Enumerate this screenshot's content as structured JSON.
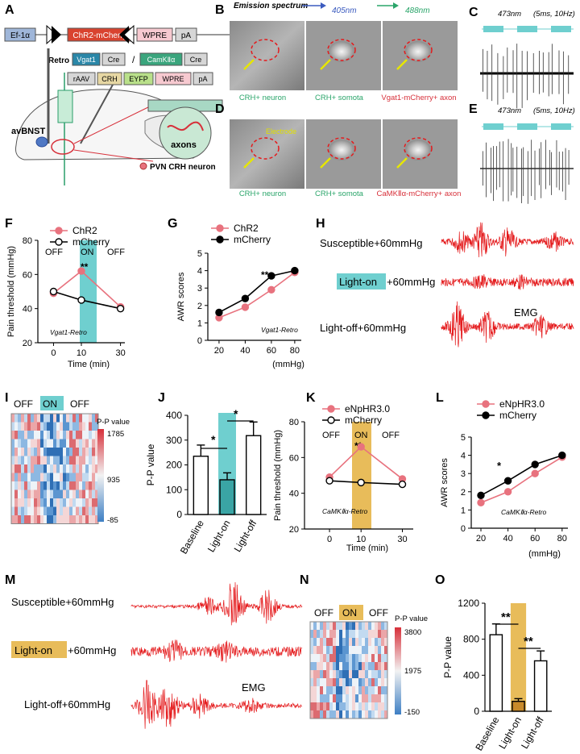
{
  "colors": {
    "chr2": "#e8727e",
    "mcherry": "#000000",
    "cyan": "#6fcfcf",
    "gold": "#e8bc5a",
    "trace": "#e41a1c",
    "halo": "#e8727e"
  },
  "panelA": {
    "letter": "A",
    "construct1": [
      "Ef-1α",
      "ChR2-mCherry",
      "WPRE",
      "pA"
    ],
    "retro_label": "Retro",
    "construct2": [
      "Vgat1",
      "Cre"
    ],
    "slash": "/",
    "construct3": [
      "CamKⅡα",
      "Cre"
    ],
    "construct4": [
      "rAAV",
      "CRH",
      "EYFP",
      "WPRE",
      "pA"
    ],
    "region": "avBNST",
    "axons": "axons",
    "legend": "PVN CRH neuron"
  },
  "panelB": {
    "letter": "B",
    "spectrum": "Emission spectrum",
    "wl1": "405nm",
    "wl2": "488nm",
    "captions": [
      "CRH+ neuron",
      "CRH+ somota",
      "Vgat1-mCherry+ axon"
    ]
  },
  "panelC": {
    "letter": "C",
    "stim": "473nm",
    "params": "(5ms, 10Hz)"
  },
  "panelD": {
    "letter": "D",
    "electrode": "Electrode",
    "captions": [
      "CRH+ neuron",
      "CRH+ somota",
      "CaMKⅡα-mCherry+ axon"
    ]
  },
  "panelE": {
    "letter": "E",
    "stim": "473nm",
    "params": "(5ms, 10Hz)"
  },
  "panelF": {
    "letter": "F",
    "legend": [
      "ChR2",
      "mCherry"
    ],
    "states": [
      "OFF",
      "ON",
      "OFF"
    ],
    "sig": "**",
    "caption": "Vgat1-Retro",
    "chart_data": {
      "type": "line",
      "xlabel": "Time (min)",
      "ylabel": "Pain threshold (mmHg)",
      "categories": [
        "0",
        "10",
        "30"
      ],
      "yticks": [
        "20",
        "40",
        "60",
        "80"
      ],
      "ylim": [
        20,
        80
      ],
      "series": [
        {
          "name": "ChR2",
          "values": [
            49,
            62,
            41
          ]
        },
        {
          "name": "mCherry",
          "values": [
            50,
            45,
            40
          ]
        }
      ]
    }
  },
  "panelG": {
    "letter": "G",
    "legend": [
      "ChR2",
      "mCherry"
    ],
    "sig": "**",
    "caption": "Vgat1-Retro",
    "chart_data": {
      "type": "line",
      "xlabel": "(mmHg)",
      "ylabel": "AWR scores",
      "categories": [
        "20",
        "40",
        "60",
        "80"
      ],
      "yticks": [
        "0",
        "1",
        "2",
        "3",
        "4",
        "5"
      ],
      "ylim": [
        0,
        5
      ],
      "series": [
        {
          "name": "ChR2",
          "values": [
            1.3,
            1.9,
            2.9,
            3.9
          ]
        },
        {
          "name": "mCherry",
          "values": [
            1.6,
            2.4,
            3.7,
            4.0
          ]
        }
      ]
    }
  },
  "panelH": {
    "letter": "H",
    "rows": [
      "Susceptible+60mmHg",
      "+60mmHg",
      "Light-off+60mmHg"
    ],
    "highlight": "Light-on",
    "emg": "EMG"
  },
  "panelI": {
    "letter": "I",
    "states": [
      "OFF",
      "ON",
      "OFF"
    ],
    "cb_title": "P-P value",
    "cb_ticks": [
      "1785",
      "935",
      "-85"
    ]
  },
  "panelJ": {
    "letter": "J",
    "sig": [
      "*",
      "*"
    ],
    "chart_data": {
      "type": "bar",
      "ylabel": "P-P value",
      "categories": [
        "Baseline",
        "Light-on",
        "Light-off"
      ],
      "values": [
        235,
        140,
        318
      ],
      "errors": [
        45,
        28,
        55
      ],
      "yticks": [
        "0",
        "100",
        "200",
        "300",
        "400"
      ],
      "ylim": [
        0,
        400
      ]
    }
  },
  "panelK": {
    "letter": "K",
    "legend": [
      "eNpHR3.0",
      "mCherry"
    ],
    "states": [
      "OFF",
      "ON",
      "OFF"
    ],
    "sig": "**",
    "caption": "CaMKⅡα-Retro",
    "chart_data": {
      "type": "line",
      "xlabel": "Time (min)",
      "ylabel": "Pain threshold (mmHg)",
      "categories": [
        "0",
        "10",
        "30"
      ],
      "yticks": [
        "20",
        "40",
        "60",
        "80"
      ],
      "ylim": [
        20,
        80
      ],
      "series": [
        {
          "name": "eNpHR3.0",
          "values": [
            49,
            66,
            48
          ]
        },
        {
          "name": "mCherry",
          "values": [
            47,
            46,
            45
          ]
        }
      ]
    }
  },
  "panelL": {
    "letter": "L",
    "legend": [
      "eNpHR3.0",
      "mCherry"
    ],
    "sig": "*",
    "caption": "CaMKⅡα-Retro",
    "chart_data": {
      "type": "line",
      "xlabel": "(mmHg)",
      "ylabel": "AWR scores",
      "categories": [
        "20",
        "40",
        "60",
        "80"
      ],
      "yticks": [
        "0",
        "1",
        "2",
        "3",
        "4",
        "5"
      ],
      "ylim": [
        0,
        5
      ],
      "series": [
        {
          "name": "eNpHR3.0",
          "values": [
            1.4,
            2.0,
            3.0,
            3.9
          ]
        },
        {
          "name": "mCherry",
          "values": [
            1.8,
            2.6,
            3.5,
            4.0
          ]
        }
      ]
    }
  },
  "panelM": {
    "letter": "M",
    "rows": [
      "Susceptible+60mmHg",
      "+60mmHg",
      "Light-off+60mmHg"
    ],
    "highlight": "Light-on",
    "emg": "EMG"
  },
  "panelN": {
    "letter": "N",
    "states": [
      "OFF",
      "ON",
      "OFF"
    ],
    "cb_title": "P-P value",
    "cb_ticks": [
      "3800",
      "1975",
      "-150"
    ]
  },
  "panelO": {
    "letter": "O",
    "sig": [
      "**",
      "**"
    ],
    "chart_data": {
      "type": "bar",
      "ylabel": "P-P value",
      "categories": [
        "Baseline",
        "Light-on",
        "Light-off"
      ],
      "values": [
        850,
        110,
        560
      ],
      "errors": [
        120,
        30,
        110
      ],
      "yticks": [
        "0",
        "400",
        "800",
        "1200"
      ],
      "ylim": [
        0,
        1200
      ]
    }
  }
}
